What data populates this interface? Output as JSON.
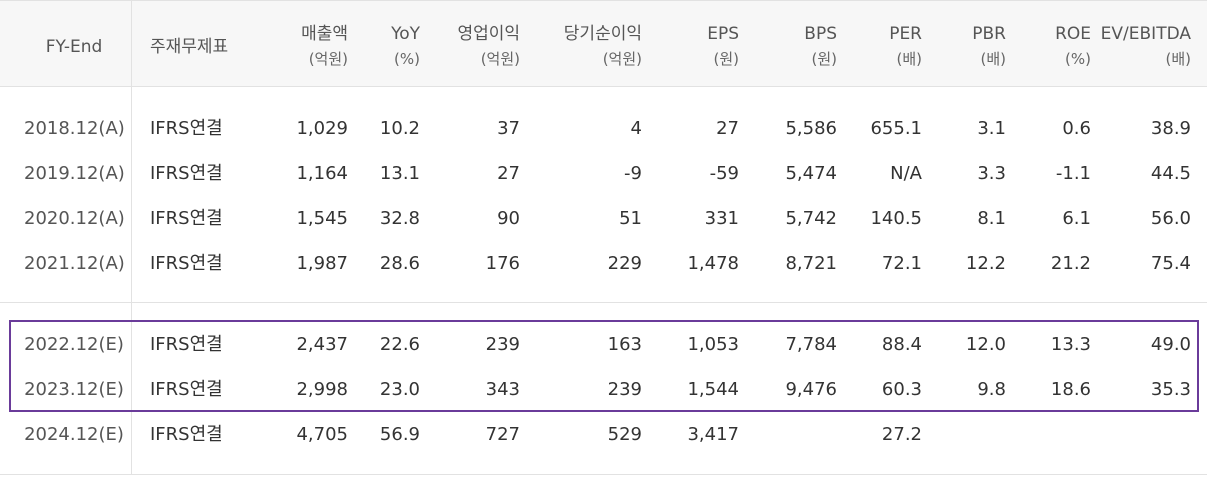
{
  "columns": [
    {
      "name": "FY-End",
      "unit": ""
    },
    {
      "name": "주재무제표",
      "unit": ""
    },
    {
      "name": "매출액",
      "unit": "(억원)"
    },
    {
      "name": "YoY",
      "unit": "(%)"
    },
    {
      "name": "영업이익",
      "unit": "(억원)"
    },
    {
      "name": "당기순이익",
      "unit": "(억원)"
    },
    {
      "name": "EPS",
      "unit": "(원)"
    },
    {
      "name": "BPS",
      "unit": "(원)"
    },
    {
      "name": "PER",
      "unit": "(배)"
    },
    {
      "name": "PBR",
      "unit": "(배)"
    },
    {
      "name": "ROE",
      "unit": "(%)"
    },
    {
      "name": "EV/EBITDA",
      "unit": "(배)"
    }
  ],
  "rows": [
    [
      "2018.12(A)",
      "IFRS연결",
      "1,029",
      "10.2",
      "37",
      "4",
      "27",
      "5,586",
      "655.1",
      "3.1",
      "0.6",
      "38.9"
    ],
    [
      "2019.12(A)",
      "IFRS연결",
      "1,164",
      "13.1",
      "27",
      "-9",
      "-59",
      "5,474",
      "N/A",
      "3.3",
      "-1.1",
      "44.5"
    ],
    [
      "2020.12(A)",
      "IFRS연결",
      "1,545",
      "32.8",
      "90",
      "51",
      "331",
      "5,742",
      "140.5",
      "8.1",
      "6.1",
      "56.0"
    ],
    [
      "2021.12(A)",
      "IFRS연결",
      "1,987",
      "28.6",
      "176",
      "229",
      "1,478",
      "8,721",
      "72.1",
      "12.2",
      "21.2",
      "75.4"
    ],
    [
      "2022.12(E)",
      "IFRS연결",
      "2,437",
      "22.6",
      "239",
      "163",
      "1,053",
      "7,784",
      "88.4",
      "12.0",
      "13.3",
      "49.0"
    ],
    [
      "2023.12(E)",
      "IFRS연결",
      "2,998",
      "23.0",
      "343",
      "239",
      "1,544",
      "9,476",
      "60.3",
      "9.8",
      "18.6",
      "35.3"
    ],
    [
      "2024.12(E)",
      "IFRS연결",
      "4,705",
      "56.9",
      "727",
      "529",
      "3,417",
      "",
      "27.2",
      "",
      "",
      ""
    ]
  ],
  "highlight_color": "#6a3b9a"
}
